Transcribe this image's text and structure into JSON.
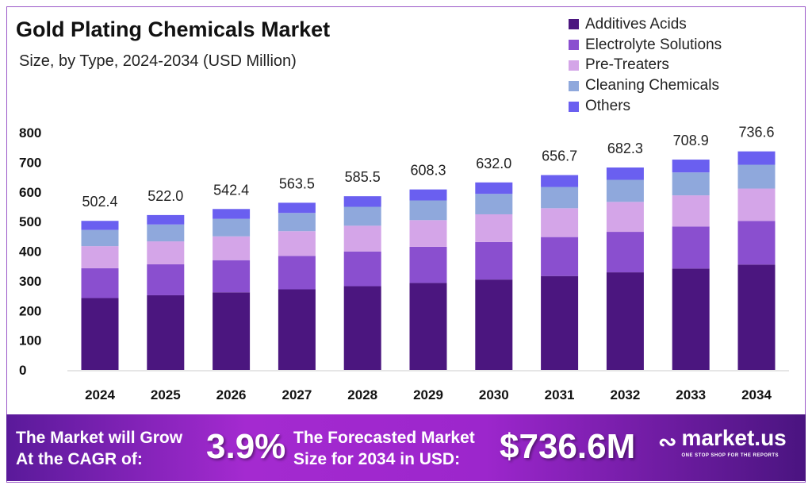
{
  "chart_data": {
    "type": "bar",
    "stacked": true,
    "title": "Gold Plating Chemicals Market",
    "subtitle": "Size, by Type, 2024-2034 (USD Million)",
    "categories": [
      "2024",
      "2025",
      "2026",
      "2027",
      "2028",
      "2029",
      "2030",
      "2031",
      "2032",
      "2033",
      "2034"
    ],
    "totals": [
      "502.4",
      "522.0",
      "542.4",
      "563.5",
      "585.5",
      "608.3",
      "632.0",
      "656.7",
      "682.3",
      "708.9",
      "736.6"
    ],
    "series": [
      {
        "name": "Additives Acids",
        "color": "#4b167f",
        "values": [
          242.2,
          251.6,
          261.4,
          271.6,
          282.2,
          293.2,
          304.6,
          316.5,
          328.9,
          341.7,
          355.0
        ]
      },
      {
        "name": "Electrolyte Solutions",
        "color": "#8a4fcf",
        "values": [
          100.5,
          104.4,
          108.5,
          112.7,
          117.1,
          121.7,
          126.4,
          131.3,
          136.5,
          141.8,
          147.3
        ]
      },
      {
        "name": "Pre-Treaters",
        "color": "#d4a5e8",
        "values": [
          74.4,
          77.3,
          80.3,
          83.4,
          86.7,
          90.0,
          93.5,
          97.2,
          101.0,
          104.9,
          109.0
        ]
      },
      {
        "name": "Cleaning Chemicals",
        "color": "#8fa8dc",
        "values": [
          54.8,
          56.9,
          59.1,
          61.4,
          63.8,
          66.3,
          68.9,
          71.6,
          74.4,
          77.3,
          80.3
        ]
      },
      {
        "name": "Others",
        "color": "#6a5ff0",
        "values": [
          30.5,
          31.8,
          33.1,
          34.4,
          35.7,
          37.1,
          38.6,
          40.1,
          41.5,
          43.2,
          45.0
        ]
      }
    ],
    "yticks": [
      "0",
      "100",
      "200",
      "300",
      "400",
      "500",
      "600",
      "700",
      "800"
    ],
    "ylim": [
      0,
      800
    ],
    "grid": false,
    "legend_position": "top-right"
  },
  "banner": {
    "cagr_text_1": "The Market will Grow",
    "cagr_text_2": "At the CAGR of:",
    "cagr_value": "3.9%",
    "forecast_text_1": "The Forecasted Market",
    "forecast_text_2": "Size for 2034 in USD:",
    "forecast_value": "$736.6M",
    "logo_name": "market.us",
    "logo_tagline": "ONE STOP SHOP FOR THE REPORTS"
  }
}
